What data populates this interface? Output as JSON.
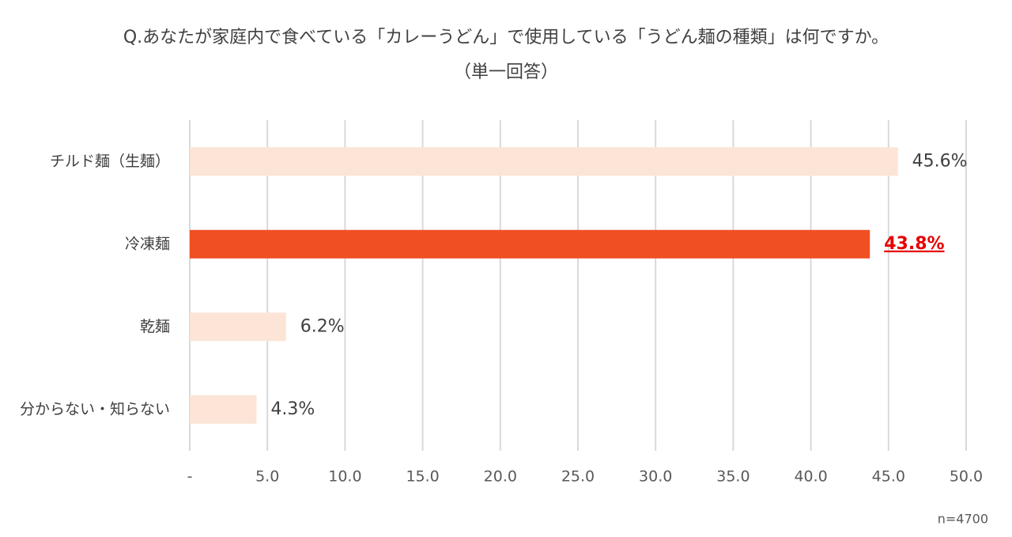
{
  "chart_data": {
    "type": "barh",
    "title": "Q.あなたが家庭内で食べている「カレーうどん」で使用している「うどん麺の種類」は何ですか。",
    "subtitle": "（単一回答）",
    "categories": [
      "チルド麺（生麺）",
      "冷凍麺",
      "乾麺",
      "分からない・知らない"
    ],
    "values": [
      45.6,
      43.8,
      6.2,
      4.3
    ],
    "value_labels": [
      "45.6%",
      "43.8%",
      "6.2%",
      "4.3%"
    ],
    "colors": [
      "#fce4d6",
      "#f04e23",
      "#fce4d6",
      "#fce4d6"
    ],
    "highlight_index": 1,
    "highlight_label_color": "#e60000",
    "xlim": [
      0,
      50
    ],
    "xticks": [
      {
        "value": 0,
        "label": "-"
      },
      {
        "value": 5,
        "label": "5.0"
      },
      {
        "value": 10,
        "label": "10.0"
      },
      {
        "value": 15,
        "label": "15.0"
      },
      {
        "value": 20,
        "label": "20.0"
      },
      {
        "value": 25,
        "label": "25.0"
      },
      {
        "value": 30,
        "label": "30.0"
      },
      {
        "value": 35,
        "label": "35.0"
      },
      {
        "value": 40,
        "label": "40.0"
      },
      {
        "value": 45,
        "label": "45.0"
      },
      {
        "value": 50,
        "label": "50.0"
      }
    ],
    "grid": true,
    "note": "n=4700"
  }
}
